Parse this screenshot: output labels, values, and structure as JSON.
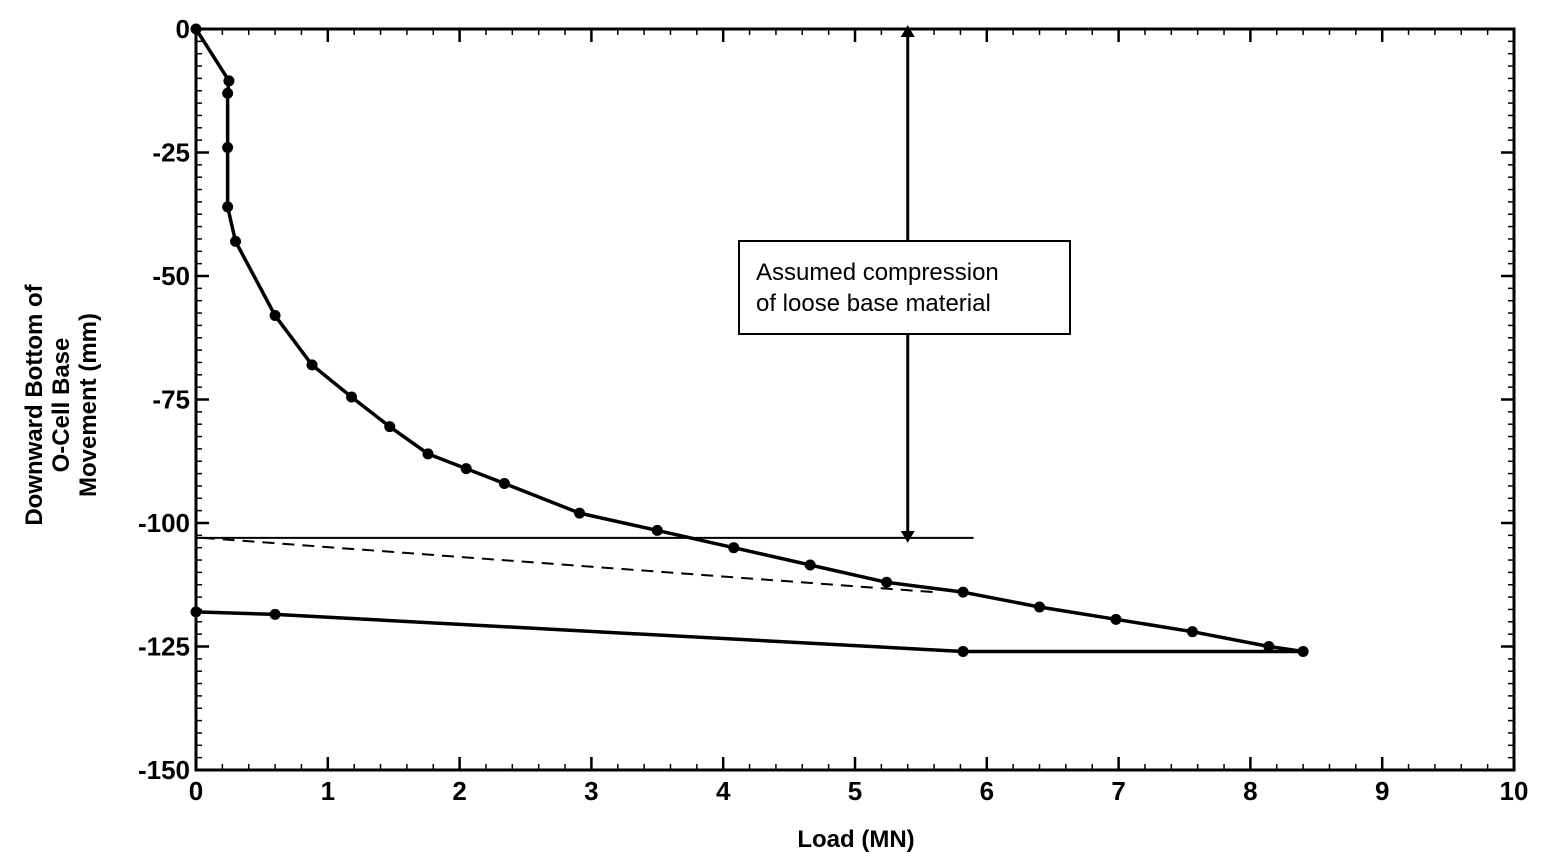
{
  "chart_data": {
    "type": "line",
    "title": "",
    "xlabel": "Load (MN)",
    "ylabel_lines": [
      "Downward Bottom of",
      "O-Cell Base",
      "Movement (mm)"
    ],
    "xlim": [
      0,
      10
    ],
    "ylim": [
      -150,
      0
    ],
    "xticks": [
      0,
      1,
      2,
      3,
      4,
      5,
      6,
      7,
      8,
      9,
      10
    ],
    "yticks": [
      0,
      -25,
      -50,
      -75,
      -100,
      -125,
      -150
    ],
    "grid": false,
    "series": [
      {
        "line_style": "solid",
        "markers": true,
        "color": "#000000",
        "x": [
          0.0,
          0.25,
          0.24,
          0.24,
          0.24,
          0.3,
          0.6,
          0.88,
          1.18,
          1.47,
          1.76,
          2.05,
          2.34,
          2.91,
          3.5,
          4.08,
          4.66,
          5.24,
          5.82,
          6.4,
          6.98,
          7.56,
          8.14,
          8.4,
          5.82,
          0.6,
          0.0
        ],
        "y": [
          0,
          -10.5,
          -13,
          -24,
          -36,
          -43,
          -58,
          -68,
          -74.5,
          -80.5,
          -86,
          -89,
          -92,
          -98,
          -101.5,
          -105,
          -108.5,
          -112,
          -114,
          -117,
          -119.5,
          -122,
          -125,
          -126,
          -126,
          -118.5,
          -118
        ]
      }
    ],
    "reference_lines": [
      {
        "kind": "horizontal",
        "line_style": "solid",
        "y": -103,
        "x_from": 0,
        "x_to": 5.9
      },
      {
        "kind": "segment",
        "line_style": "dashed",
        "x1": 0.05,
        "y1": -103,
        "x2": 5.6,
        "y2": -114
      }
    ],
    "annotation": {
      "text_lines": [
        "Assumed compression",
        "of loose base material"
      ],
      "arrow_x": 5.4,
      "arrow_y_from": 0,
      "arrow_y_to": -103
    }
  }
}
